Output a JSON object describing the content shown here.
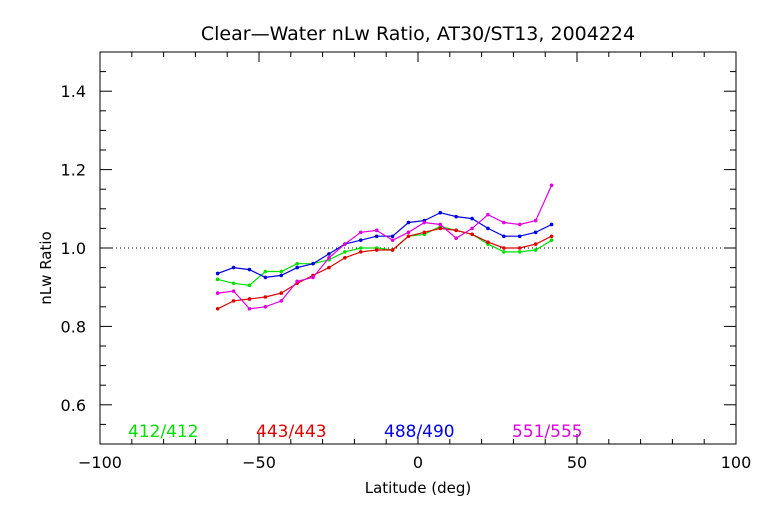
{
  "chart_data": {
    "type": "line",
    "title": "Clear—Water nLw Ratio, AT30/ST13, 2004224",
    "xlabel": "Latitude (deg)",
    "ylabel": "nLw Ratio",
    "xlim": [
      -100,
      100
    ],
    "ylim": [
      0.5,
      1.5
    ],
    "xticks": [
      -100,
      -50,
      0,
      50,
      100
    ],
    "xtick_labels": [
      "−100",
      "−50",
      "0",
      "50",
      "100"
    ],
    "yticks": [
      0.6,
      0.8,
      1.0,
      1.2,
      1.4
    ],
    "ytick_labels": [
      "0.6",
      "0.8",
      "1.0",
      "1.2",
      "1.4"
    ],
    "grid": false,
    "reference_line": {
      "y": 1.0,
      "style": "dotted"
    },
    "legend_position": "bottom",
    "series": [
      {
        "name": "412/412",
        "color": "#00e000",
        "x": [
          -63,
          -58,
          -53,
          -48,
          -43,
          -38,
          -33,
          -28,
          -23,
          -18,
          -13,
          -8,
          -3,
          2,
          7,
          12,
          17,
          22,
          27,
          32,
          37,
          42
        ],
        "y": [
          0.92,
          0.91,
          0.905,
          0.94,
          0.94,
          0.96,
          0.96,
          0.97,
          0.99,
          1.0,
          1.0,
          0.995,
          1.03,
          1.035,
          1.055,
          1.045,
          1.035,
          1.01,
          0.99,
          0.99,
          0.995,
          1.02
        ]
      },
      {
        "name": "443/443",
        "color": "#e00000",
        "x": [
          -63,
          -58,
          -53,
          -48,
          -43,
          -38,
          -33,
          -28,
          -23,
          -18,
          -13,
          -8,
          -3,
          2,
          7,
          12,
          17,
          22,
          27,
          32,
          37,
          42
        ],
        "y": [
          0.845,
          0.865,
          0.87,
          0.875,
          0.885,
          0.91,
          0.93,
          0.95,
          0.975,
          0.99,
          0.995,
          0.995,
          1.03,
          1.04,
          1.05,
          1.045,
          1.035,
          1.015,
          1.0,
          1.0,
          1.01,
          1.03
        ]
      },
      {
        "name": "488/490",
        "color": "#0000e0",
        "x": [
          -63,
          -58,
          -53,
          -48,
          -43,
          -38,
          -33,
          -28,
          -23,
          -18,
          -13,
          -8,
          -3,
          2,
          7,
          12,
          17,
          22,
          27,
          32,
          37,
          42
        ],
        "y": [
          0.935,
          0.95,
          0.945,
          0.925,
          0.93,
          0.95,
          0.96,
          0.985,
          1.01,
          1.02,
          1.03,
          1.03,
          1.065,
          1.07,
          1.09,
          1.08,
          1.075,
          1.05,
          1.03,
          1.03,
          1.04,
          1.06
        ]
      },
      {
        "name": "551/555",
        "color": "#e000e0",
        "x": [
          -63,
          -58,
          -53,
          -48,
          -43,
          -38,
          -33,
          -28,
          -23,
          -18,
          -13,
          -8,
          -3,
          2,
          7,
          12,
          17,
          22,
          27,
          32,
          37,
          42
        ],
        "y": [
          0.885,
          0.89,
          0.845,
          0.85,
          0.865,
          0.915,
          0.925,
          0.975,
          1.01,
          1.04,
          1.045,
          1.02,
          1.04,
          1.065,
          1.06,
          1.025,
          1.05,
          1.085,
          1.065,
          1.06,
          1.07,
          1.16
        ]
      }
    ]
  }
}
